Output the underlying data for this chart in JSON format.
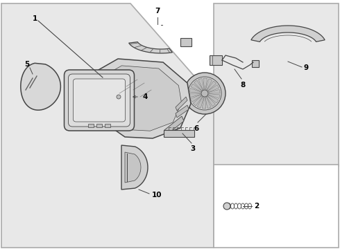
{
  "fig_width": 4.9,
  "fig_height": 3.6,
  "dpi": 100,
  "bg_color": "#e8e8e8",
  "panel_color": "#e8e8e8",
  "box_color": "#e8e8e8",
  "white": "#ffffff",
  "lc": "#444444",
  "lc_light": "#888888"
}
